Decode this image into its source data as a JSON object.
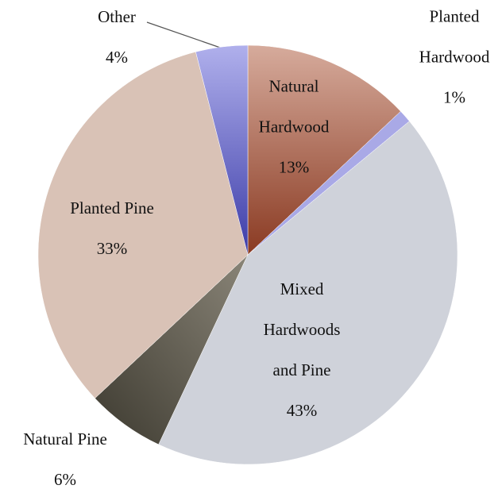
{
  "chart_data": {
    "type": "pie",
    "categories": [
      "Natural Hardwood",
      "Planted Hardwood",
      "Mixed Hardwoods and Pine",
      "Natural Pine",
      "Planted Pine",
      "Other"
    ],
    "values": [
      13,
      1,
      43,
      6,
      33,
      4
    ],
    "value_labels": [
      "13%",
      "1%",
      "43%",
      "6%",
      "33%",
      "4%"
    ],
    "colors": [
      "#b8705c",
      "#a9a9e6",
      "#cfd2da",
      "#5d584a",
      "#d9c2b6",
      "#a3a3e2"
    ]
  }
}
